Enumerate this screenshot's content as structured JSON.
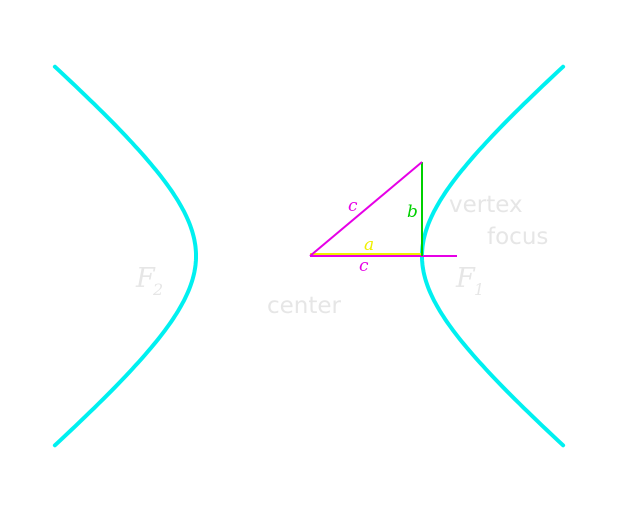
{
  "colors": {
    "hyperbola": "#00f0f0",
    "hypotenuse_c": "#e600e6",
    "leg_b": "#00d000",
    "leg_a": "#f0f000",
    "axis_c": "#e600e6",
    "label_light": "#e6e6e6",
    "background": "#ffffff"
  },
  "labels": {
    "f2_main": "F",
    "f2_sub": "2",
    "f1_main": "F",
    "f1_sub": "1",
    "center": "center",
    "vertex": "vertex",
    "focus": "focus",
    "a": "a",
    "b": "b",
    "c_hyp": "c",
    "c_axis": "c"
  }
}
